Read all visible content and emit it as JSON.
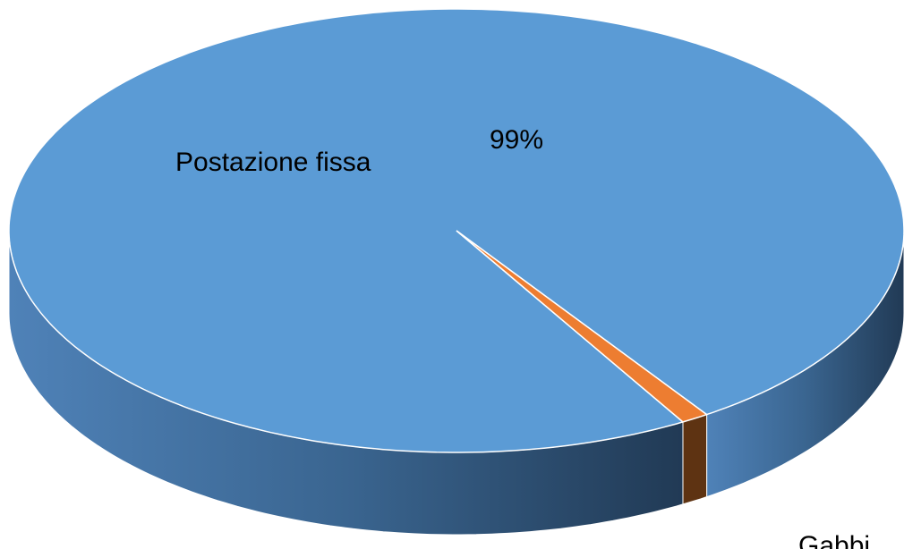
{
  "chart_data": {
    "type": "pie3d",
    "categories": [
      "Postazione fissa",
      "Gabbi"
    ],
    "values": [
      99,
      1
    ],
    "value_labels": [
      "99%",
      null
    ],
    "colors": [
      "#5b9bd5",
      "#ed7d31"
    ]
  }
}
